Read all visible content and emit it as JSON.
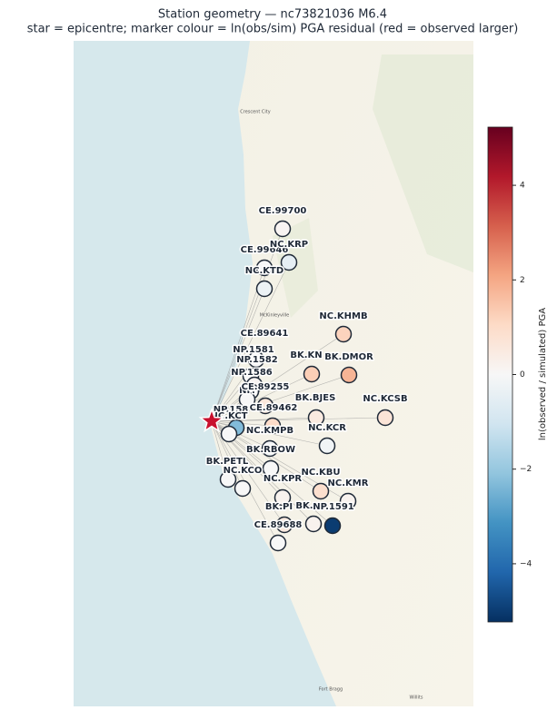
{
  "chart_data": {
    "type": "station_map",
    "title": "Station geometry — nc73821036  M6.4",
    "subtitle": "star = epicentre;  marker colour = ln(obs/sim) PGA residual (red = observed larger)",
    "colorbar_label": "ln(observed / simulated) PGA",
    "clim": [
      -5.23,
      5.23
    ],
    "cticks": [
      {
        "value": -4,
        "label": "−4"
      },
      {
        "value": -2,
        "label": "−2"
      },
      0,
      2,
      4
    ],
    "colormap": [
      "#053061",
      "#2166ac",
      "#4393c3",
      "#92c5de",
      "#d1e5f0",
      "#f7f7f7",
      "#fddbc7",
      "#f4a582",
      "#d6604d",
      "#b2182b",
      "#67001f"
    ],
    "epicentre_color": "#c8102e",
    "places": [
      "Crescent City",
      "McKinleyville",
      "Fort Bragg",
      "Willits"
    ],
    "stations": [
      "CE.99700",
      "CE.99646",
      "NC.KRP",
      "NC.KTD",
      "NC.KHMB",
      "CE.89641",
      "NP.1581",
      "NP.1582",
      "NP.1586",
      "NP.",
      "CE.89255",
      "BK.KN",
      "BK.DMOR",
      "BK.BJES",
      "NC.KCSB",
      "CE.89462",
      "NP.158",
      "NC.KCT",
      "NC.KMPB",
      "NC.KCR",
      "BK.RBOW",
      "BK.PETL",
      "NC.KCO",
      "NC.KPR",
      "NC.KBU",
      "NC.KMR",
      "BK.PI",
      "BK.",
      "NP.1591",
      "CE.89688"
    ],
    "residuals": [
      0.1,
      0.0,
      -0.5,
      -0.3,
      1.2,
      0.0,
      0.0,
      0.1,
      0.0,
      0.0,
      0.6,
      1.3,
      1.8,
      0.5,
      0.7,
      1.0,
      -2.3,
      0.0,
      -0.1,
      -0.2,
      0.0,
      0.0,
      0.0,
      0.2,
      0.9,
      0.2,
      0.5,
      0.2,
      -5.0,
      0.0
    ]
  }
}
